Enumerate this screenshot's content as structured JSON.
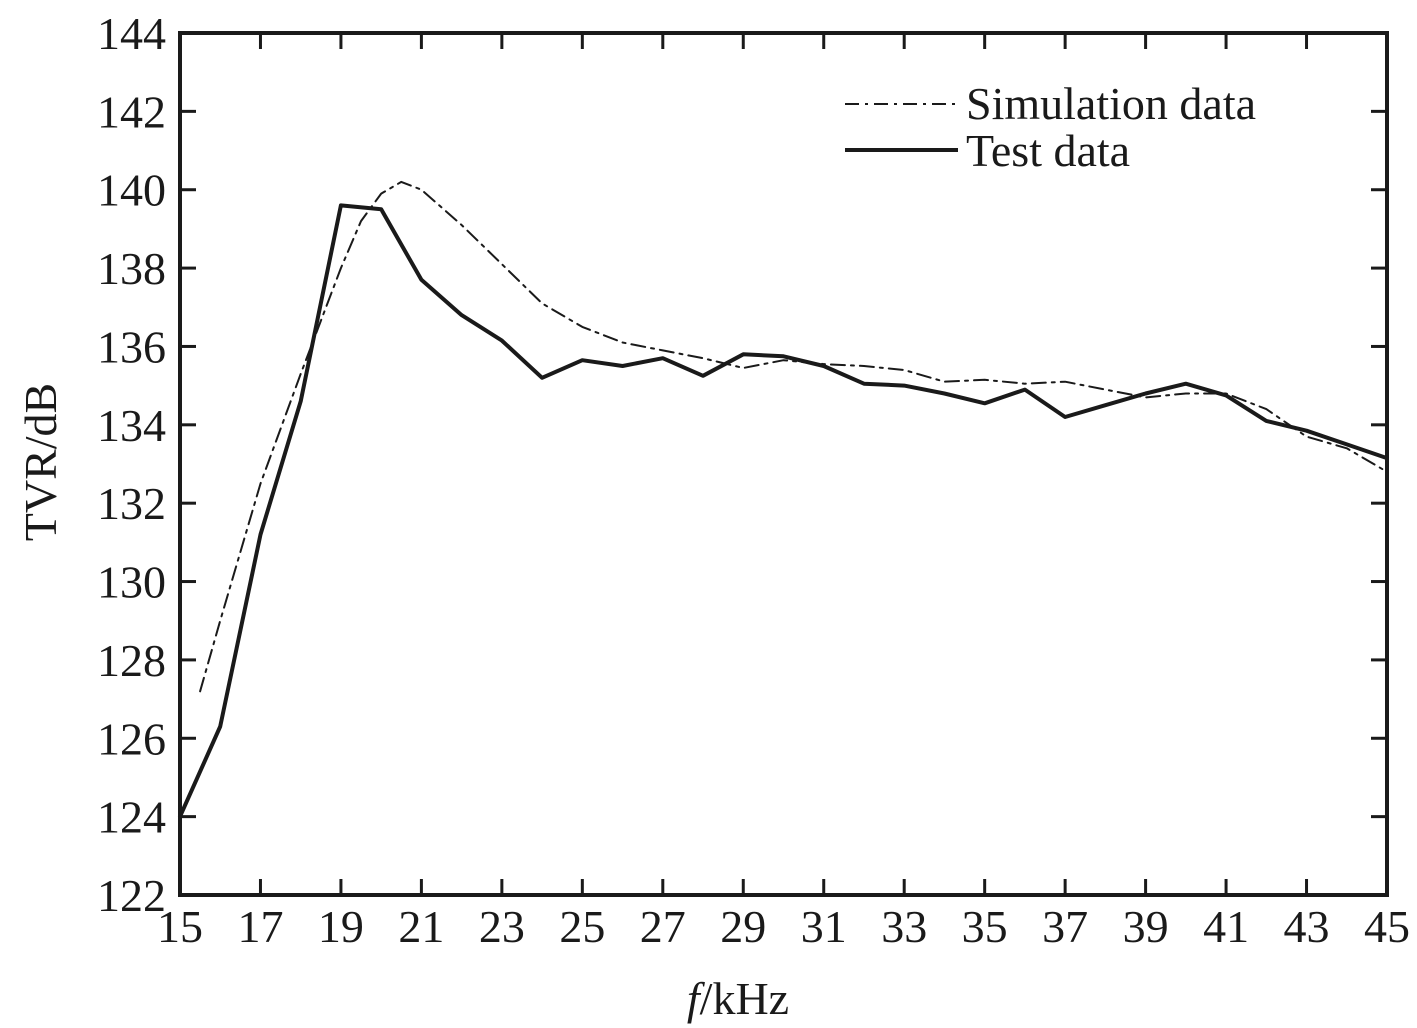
{
  "chart_data": {
    "type": "line",
    "xlabel_italic": "f",
    "xlabel_rest": "/kHz",
    "ylabel": "TVR/dB",
    "xlim": [
      15,
      45
    ],
    "ylim": [
      122,
      144
    ],
    "x_ticks": [
      "15",
      "17",
      "19",
      "21",
      "23",
      "25",
      "27",
      "29",
      "31",
      "33",
      "35",
      "37",
      "39",
      "41",
      "43",
      "45"
    ],
    "y_ticks": [
      "122",
      "124",
      "126",
      "128",
      "130",
      "132",
      "134",
      "136",
      "138",
      "140",
      "142",
      "144"
    ],
    "grid": false,
    "legend_position": "top-right",
    "series": [
      {
        "name": "Simulation data",
        "style": "dash-dot",
        "color": "#1a1a1a",
        "x": [
          15.5,
          16,
          17,
          18,
          19,
          19.5,
          20,
          20.5,
          21,
          22,
          23,
          24,
          25,
          26,
          27,
          28,
          29,
          30,
          31,
          32,
          33,
          34,
          35,
          36,
          37,
          38,
          39,
          40,
          41,
          42,
          43,
          44,
          45
        ],
        "y": [
          127.2,
          129.0,
          132.5,
          135.3,
          138.0,
          139.2,
          139.9,
          140.2,
          140.0,
          139.1,
          138.1,
          137.1,
          136.5,
          136.1,
          135.9,
          135.7,
          135.45,
          135.65,
          135.55,
          135.5,
          135.4,
          135.1,
          135.15,
          135.05,
          135.1,
          134.9,
          134.7,
          134.8,
          134.8,
          134.4,
          133.7,
          133.4,
          132.8
        ]
      },
      {
        "name": "Test data",
        "style": "solid",
        "color": "#1a1a1a",
        "x": [
          15,
          16,
          17,
          18,
          19,
          20,
          21,
          22,
          23,
          24,
          25,
          26,
          27,
          28,
          29,
          30,
          31,
          32,
          33,
          34,
          35,
          36,
          37,
          38,
          39,
          40,
          41,
          42,
          43,
          44,
          45
        ],
        "y": [
          124.0,
          126.3,
          131.2,
          134.6,
          139.6,
          139.5,
          137.7,
          136.8,
          136.15,
          135.2,
          135.65,
          135.5,
          135.7,
          135.25,
          135.8,
          135.75,
          135.5,
          135.05,
          135.0,
          134.8,
          134.55,
          134.9,
          134.2,
          134.5,
          134.8,
          135.05,
          134.75,
          134.1,
          133.85,
          133.5,
          133.15
        ]
      }
    ]
  }
}
